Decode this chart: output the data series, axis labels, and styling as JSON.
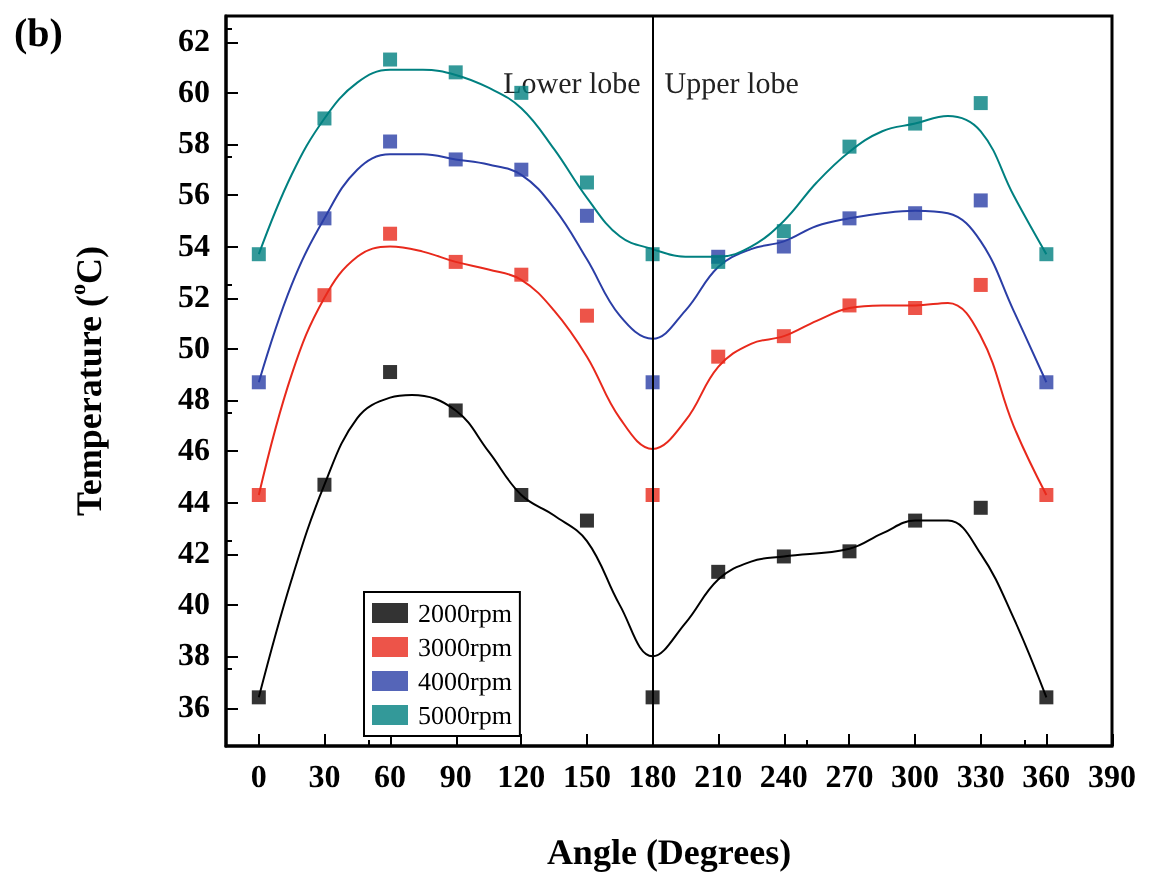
{
  "chart_data": {
    "type": "scatter",
    "title": "(b)",
    "xlabel": "Angle (Degrees)",
    "ylabel": "Temperature ($^{o}$C)",
    "x": [
      0,
      30,
      60,
      90,
      120,
      150,
      180,
      210,
      240,
      270,
      300,
      330,
      360
    ],
    "series": [
      {
        "name": "2000rpm",
        "color": "#000000",
        "values": [
          36.4,
          44.7,
          49.1,
          47.6,
          44.3,
          43.3,
          36.4,
          41.3,
          41.9,
          42.1,
          43.3,
          43.8,
          36.4
        ]
      },
      {
        "name": "3000rpm",
        "color": "#e8291c",
        "values": [
          44.3,
          52.1,
          54.5,
          53.4,
          52.9,
          51.3,
          44.3,
          49.7,
          50.5,
          51.7,
          51.6,
          52.5,
          44.3
        ]
      },
      {
        "name": "4000rpm",
        "color": "#2b3ea6",
        "values": [
          48.7,
          55.1,
          58.1,
          57.4,
          57.0,
          55.2,
          48.7,
          53.6,
          54.0,
          55.1,
          55.3,
          55.8,
          48.7
        ]
      },
      {
        "name": "5000rpm",
        "color": "#008080",
        "values": [
          53.7,
          59.0,
          61.3,
          60.8,
          60.0,
          56.5,
          53.7,
          53.4,
          54.6,
          57.9,
          58.8,
          59.6,
          53.7
        ]
      },
      {
        "type": "line",
        "marker": "none",
        "color": "#000000",
        "x": [
          0,
          15,
          30,
          45,
          60,
          70,
          90,
          105,
          120,
          135,
          150,
          165,
          180,
          195,
          210,
          225,
          240,
          270,
          285,
          300,
          315,
          330,
          345,
          360
        ],
        "values": [
          36.4,
          41.0,
          44.7,
          47.3,
          48.1,
          48.2,
          47.6,
          46.0,
          44.3,
          43.5,
          42.5,
          40.0,
          38.0,
          39.3,
          41.0,
          41.7,
          41.9,
          42.2,
          42.8,
          43.3,
          43.3,
          42.0,
          39.5,
          36.4
        ]
      },
      {
        "type": "line",
        "marker": "none",
        "color": "#e8291c",
        "x": [
          0,
          15,
          30,
          45,
          60,
          75,
          90,
          105,
          120,
          135,
          150,
          165,
          180,
          195,
          210,
          225,
          240,
          255,
          270,
          285,
          300,
          315,
          330,
          345,
          360
        ],
        "values": [
          44.3,
          49.0,
          52.0,
          53.6,
          54.0,
          53.8,
          53.4,
          53.1,
          52.7,
          51.5,
          49.7,
          47.3,
          46.1,
          47.2,
          49.3,
          50.2,
          50.5,
          51.1,
          51.6,
          51.7,
          51.7,
          51.8,
          50.5,
          47.0,
          44.3
        ]
      },
      {
        "type": "line",
        "marker": "none",
        "color": "#2b3ea6",
        "x": [
          0,
          15,
          30,
          45,
          60,
          75,
          90,
          105,
          120,
          135,
          150,
          165,
          180,
          195,
          210,
          225,
          240,
          255,
          270,
          285,
          300,
          315,
          330,
          345,
          360
        ],
        "values": [
          48.7,
          52.5,
          55.1,
          57.0,
          57.6,
          57.6,
          57.4,
          57.2,
          56.8,
          55.5,
          53.5,
          51.3,
          50.4,
          51.5,
          53.2,
          53.9,
          54.2,
          54.8,
          55.1,
          55.3,
          55.4,
          55.3,
          54.2,
          51.5,
          48.7
        ]
      },
      {
        "type": "line",
        "marker": "none",
        "color": "#008080",
        "x": [
          0,
          15,
          30,
          45,
          60,
          75,
          90,
          105,
          120,
          135,
          150,
          165,
          180,
          195,
          210,
          225,
          240,
          255,
          270,
          285,
          300,
          315,
          330,
          345,
          360
        ],
        "values": [
          53.7,
          56.8,
          59.0,
          60.4,
          60.9,
          60.9,
          60.7,
          60.2,
          59.4,
          57.8,
          55.9,
          54.4,
          53.9,
          53.6,
          53.6,
          54.0,
          55.0,
          56.5,
          57.7,
          58.5,
          58.8,
          59.1,
          58.5,
          56.0,
          53.7
        ]
      }
    ],
    "annotations": [
      "Lower lobe",
      "Upper lobe"
    ],
    "ref_lines": [
      {
        "axis": "x",
        "value": 180,
        "color": "#000000"
      }
    ],
    "xlim": [
      -15,
      390
    ],
    "xticks": [
      0,
      30,
      60,
      90,
      120,
      150,
      180,
      210,
      240,
      270,
      300,
      330,
      360,
      390
    ],
    "ylim": [
      34.5,
      63
    ],
    "yticks": [
      36,
      38,
      40,
      42,
      44,
      46,
      48,
      50,
      52,
      54,
      56,
      58,
      60,
      62
    ],
    "grid": false,
    "legend": "bottom left",
    "marker": "square"
  }
}
